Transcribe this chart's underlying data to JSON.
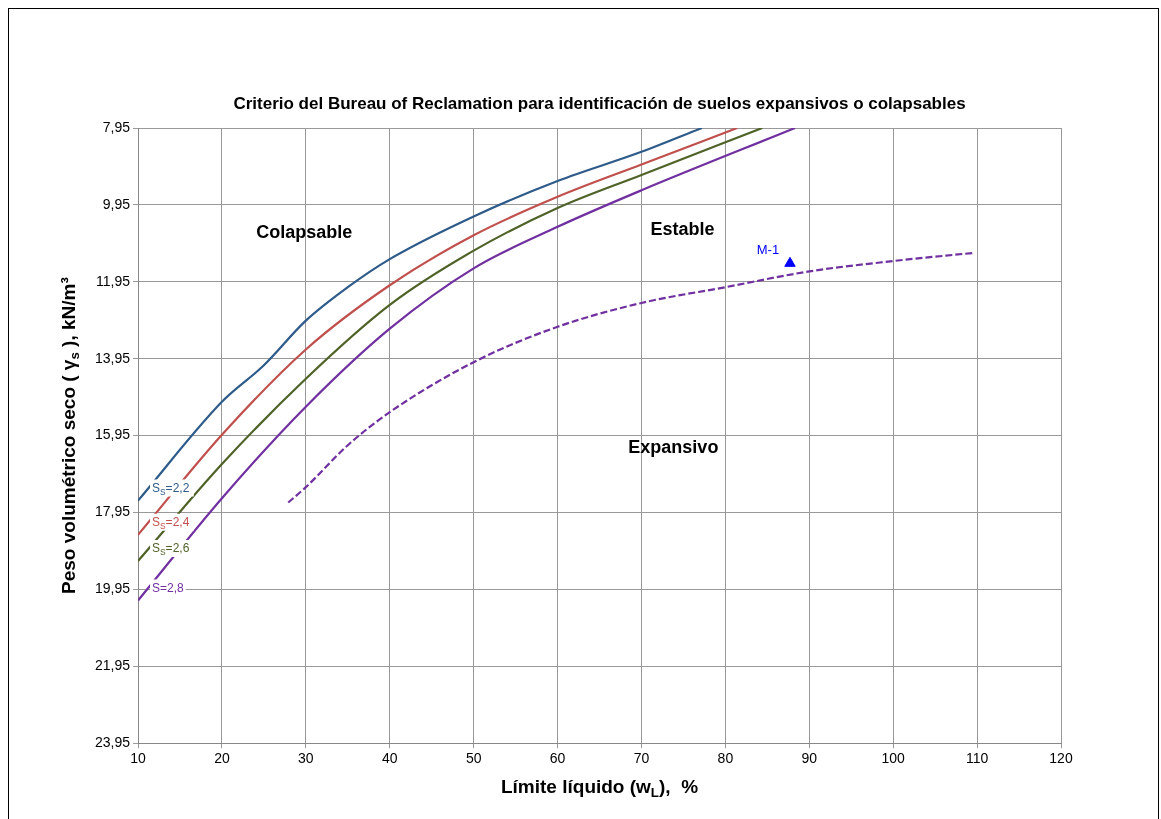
{
  "chart_data": {
    "type": "line",
    "title": "Criterio del Bureau of Reclamation para identificación de suelos expansivos o colapsables",
    "xlabel": "Límite líquido (w$_{L}$),  %",
    "ylabel": "Peso volumétrico seco ( γ$_{s}$ ), kN/m³",
    "xlim": [
      10,
      120
    ],
    "xticks": [
      10,
      20,
      30,
      40,
      50,
      60,
      70,
      80,
      90,
      100,
      110,
      120
    ],
    "ylim": [
      23.95,
      7.95
    ],
    "yticks": [
      {
        "value": 7.95,
        "label": "7,95"
      },
      {
        "value": 9.95,
        "label": "9,95"
      },
      {
        "value": 11.95,
        "label": "11,95"
      },
      {
        "value": 13.95,
        "label": "13,95"
      },
      {
        "value": 15.95,
        "label": "15,95"
      },
      {
        "value": 17.95,
        "label": "17,95"
      },
      {
        "value": 19.95,
        "label": "19,95"
      },
      {
        "value": 21.95,
        "label": "21,95"
      },
      {
        "value": 23.95,
        "label": "23,95"
      }
    ],
    "grid": true,
    "legend": false,
    "marker": "none",
    "series": [
      {
        "name": "S$_{S}$=2,2",
        "color": "#2e5b8a",
        "x": [
          10,
          20,
          25,
          30,
          35,
          40,
          50,
          60,
          70,
          77.2
        ],
        "values": [
          17.64,
          15.07,
          14.12,
          12.96,
          12.09,
          11.36,
          10.25,
          9.33,
          8.57,
          7.95
        ]
      },
      {
        "name": "S$_{S}$=2,4",
        "color": "#c0504d",
        "x": [
          10,
          20,
          30,
          40,
          50,
          60,
          70,
          81.4
        ],
        "values": [
          18.53,
          15.93,
          13.71,
          12.04,
          10.74,
          9.74,
          8.9,
          7.95
        ]
      },
      {
        "name": "S$_{S}$=2,6",
        "color": "#4f6228",
        "x": [
          10,
          20,
          30,
          40,
          50,
          60,
          70,
          84.4
        ],
        "values": [
          19.21,
          16.69,
          14.47,
          12.55,
          11.14,
          10.03,
          9.17,
          7.95
        ]
      },
      {
        "name": "S=2,8",
        "color": "#7030a0",
        "x": [
          10,
          20,
          30,
          40,
          50,
          60,
          70,
          88.3
        ],
        "values": [
          20.24,
          17.58,
          15.2,
          13.17,
          11.6,
          10.52,
          9.57,
          7.95
        ]
      },
      {
        "color": "#7030a0",
        "line_style": "dashed",
        "x": [
          27.9,
          30,
          35,
          40,
          50,
          60,
          70,
          80,
          90,
          100,
          109.5
        ],
        "values": [
          17.69,
          17.29,
          16.2,
          15.34,
          14.04,
          13.12,
          12.5,
          12.09,
          11.68,
          11.41,
          11.2
        ]
      },
      {
        "name": "M-1",
        "type": "scatter",
        "marker": "triangle",
        "color": "#0000ff",
        "x": [
          87.7
        ],
        "values": [
          11.47
        ]
      }
    ],
    "annotations": [
      "Colapsable",
      "Estable",
      "Expansivo"
    ]
  }
}
